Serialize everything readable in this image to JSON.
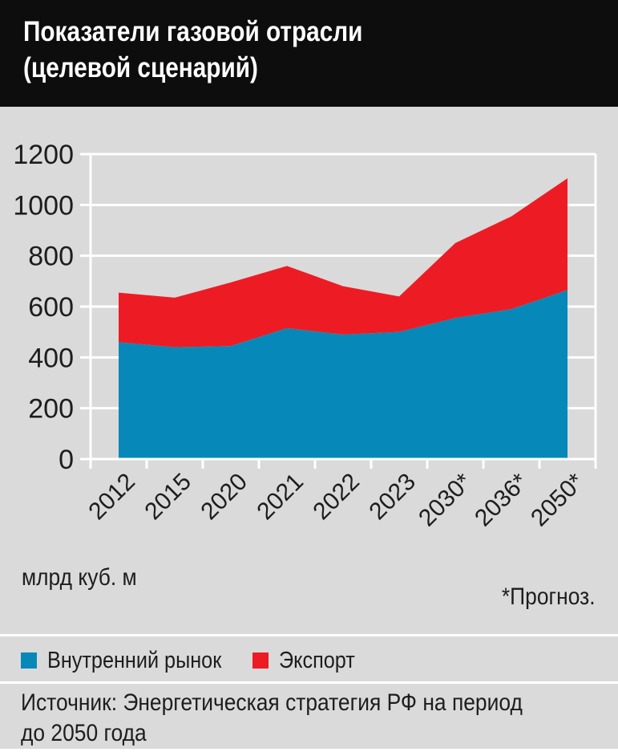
{
  "header": {
    "title_line1": "Показатели газовой отрасли",
    "title_line2": "(целевой сценарий)"
  },
  "chart_data": {
    "type": "area",
    "stacked": true,
    "title": "Показатели газовой отрасли (целевой сценарий)",
    "categories": [
      "2012",
      "2015",
      "2020",
      "2021",
      "2022",
      "2023",
      "2030*",
      "2036*",
      "2050*"
    ],
    "series": [
      {
        "name": "Внутренний рынок",
        "color": "#0689b8",
        "values": [
          460,
          440,
          445,
          515,
          490,
          500,
          555,
          590,
          665
        ]
      },
      {
        "name": "Экспорт",
        "color": "#ed1c24",
        "values": [
          195,
          195,
          250,
          245,
          190,
          140,
          295,
          365,
          440
        ]
      }
    ],
    "stacked_totals": [
      655,
      635,
      695,
      760,
      680,
      640,
      850,
      955,
      1105
    ],
    "ylabel": "млрд куб. м",
    "ylim": [
      0,
      1200
    ],
    "ytick_step": 200,
    "yticks": [
      "0",
      "200",
      "400",
      "600",
      "800",
      "1000",
      "1200"
    ],
    "grid": true,
    "gridline_color": "#ffffff",
    "plot_background": "#dadada",
    "legend_position": "bottom"
  },
  "units_label": "млрд куб. м",
  "footnote": "*Прогноз.",
  "source": {
    "line1": "Источник: Энергетическая стратегия РФ на период",
    "line2": "до 2050 года"
  },
  "colors": {
    "header_background": "#0d0d0d",
    "body_background": "#dadada",
    "domestic_blue": "#0689b8",
    "export_red": "#ed1c24",
    "text_dark": "#1d1d1d",
    "grid_white": "#ffffff"
  }
}
